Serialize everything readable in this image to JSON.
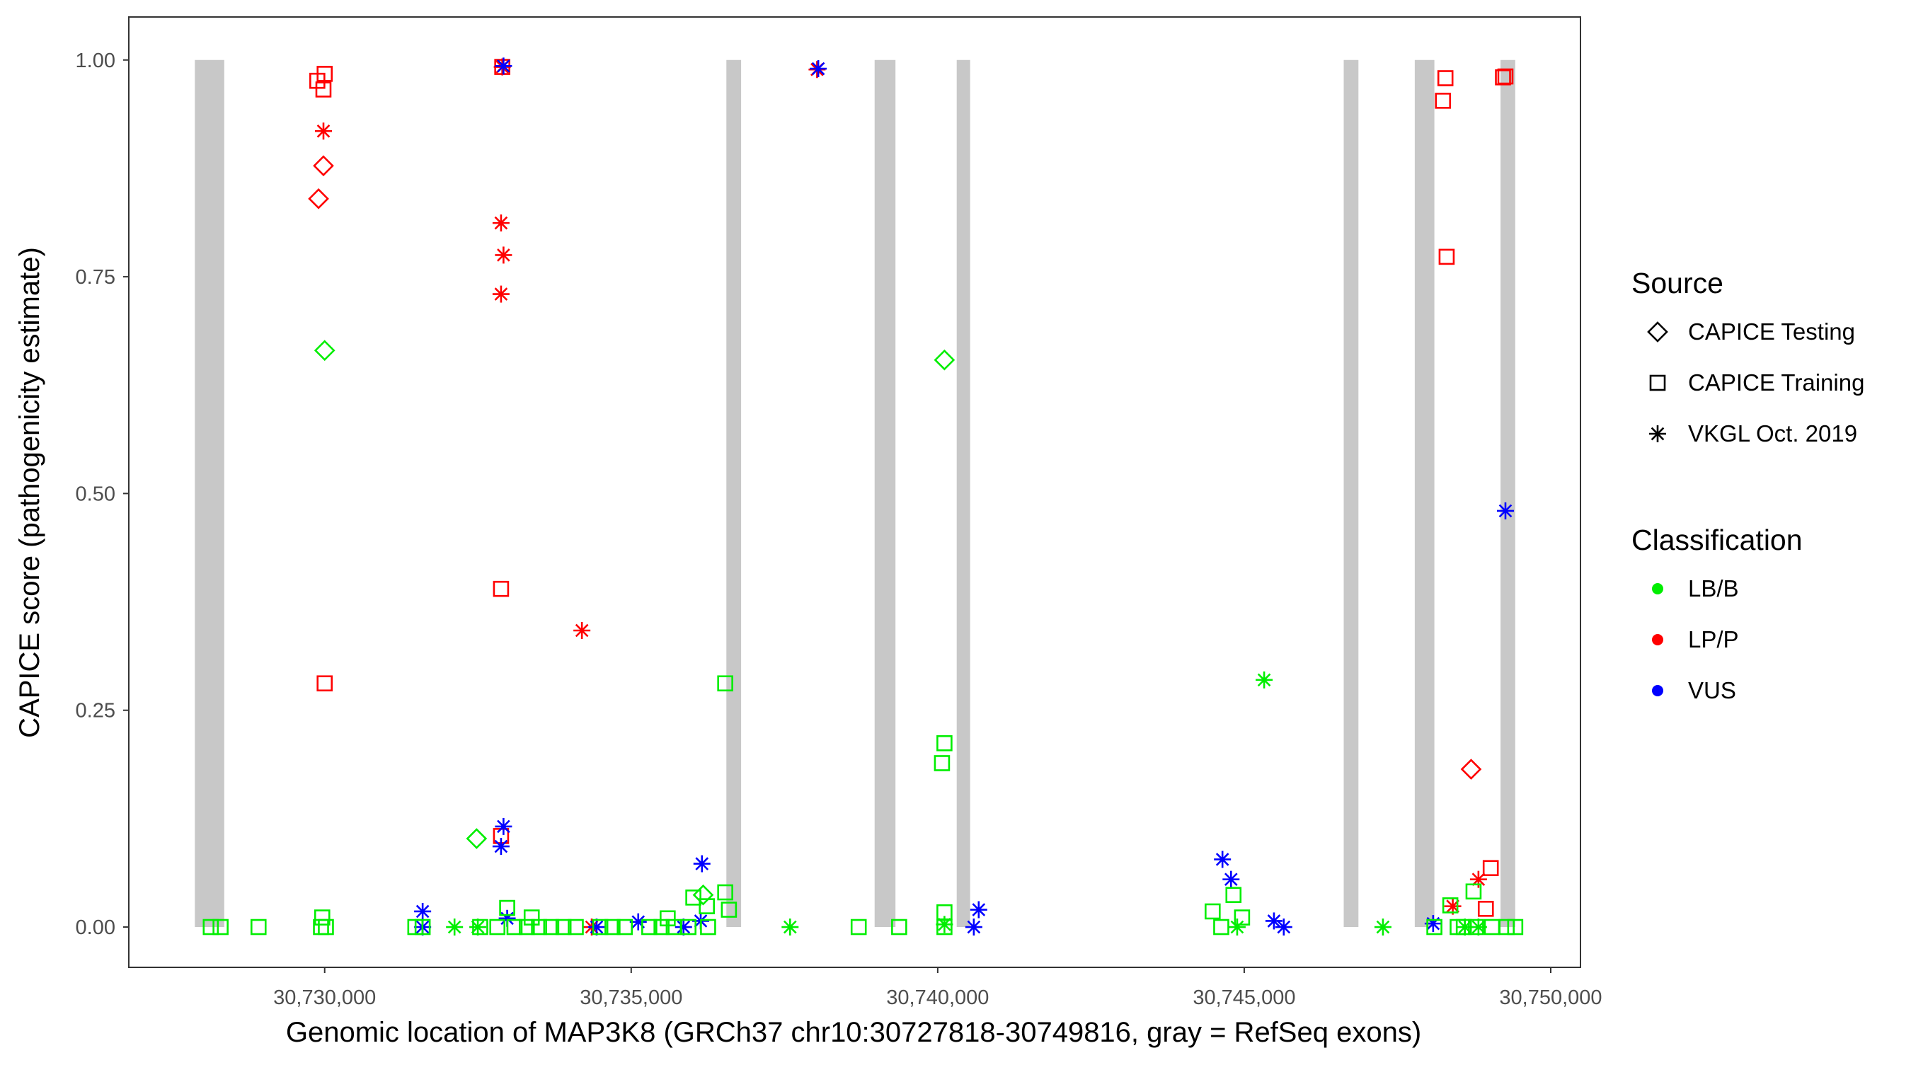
{
  "chart_data": {
    "type": "scatter",
    "title": "",
    "xlabel": "Genomic location of MAP3K8 (GRCh37 chr10:30727818-30749816, gray = RefSeq exons)",
    "ylabel": "CAPICE score (pathogenicity estimate)",
    "xlim": [
      30726805,
      30750485
    ],
    "ylim": [
      -0.0465,
      1.0496
    ],
    "x_ticks": [
      30730000,
      30735000,
      30740000,
      30745000,
      30750000
    ],
    "x_tick_labels": [
      "30,730,000",
      "30,735,000",
      "30,740,000",
      "30,745,000",
      "30,750,000"
    ],
    "y_ticks": [
      0,
      0.25,
      0.5,
      0.75,
      1
    ],
    "y_tick_labels": [
      "0.00",
      "0.25",
      "0.50",
      "0.75",
      "1.00"
    ],
    "grid": false,
    "exons": [
      [
        30727882,
        30728362
      ],
      [
        30736553,
        30736793
      ],
      [
        30738971,
        30739311
      ],
      [
        30740310,
        30740529
      ],
      [
        30746623,
        30746863
      ],
      [
        30747782,
        30748102
      ],
      [
        30749181,
        30749421
      ]
    ],
    "exon_color": "#c8c8c8",
    "legend": {
      "placement": "right",
      "source_title": "Source",
      "source_items": [
        {
          "label": "CAPICE Testing",
          "shape": "diamond"
        },
        {
          "label": "CAPICE Training",
          "shape": "square"
        },
        {
          "label": "VKGL Oct. 2019",
          "shape": "asterisk"
        }
      ],
      "class_title": "Classification",
      "class_items": [
        {
          "label": "LB/B",
          "color": "#00ee00"
        },
        {
          "label": "LP/P",
          "color": "#ff0000"
        },
        {
          "label": "VUS",
          "color": "#0000ff"
        }
      ]
    },
    "series": [
      {
        "source": "CAPICE Training",
        "class": "LP/P",
        "points": [
          [
            30729880,
            0.976
          ],
          [
            30730000,
            0.984
          ],
          [
            30729980,
            0.966
          ],
          [
            30732897,
            0.992
          ],
          [
            30732877,
            0.39
          ],
          [
            30730000,
            0.281
          ],
          [
            30732877,
            0.105
          ],
          [
            30748282,
            0.979
          ],
          [
            30748242,
            0.953
          ],
          [
            30748302,
            0.773
          ],
          [
            30749221,
            0.98
          ],
          [
            30749261,
            0.981
          ],
          [
            30749021,
            0.068
          ],
          [
            30748941,
            0.021
          ]
        ]
      },
      {
        "source": "CAPICE Testing",
        "class": "LP/P",
        "points": [
          [
            30729980,
            0.878
          ],
          [
            30729900,
            0.84
          ],
          [
            30748701,
            0.182
          ]
        ]
      },
      {
        "source": "VKGL Oct. 2019",
        "class": "LP/P",
        "points": [
          [
            30729980,
            0.918
          ],
          [
            30732877,
            0.812
          ],
          [
            30732917,
            0.775
          ],
          [
            30732877,
            0.73
          ],
          [
            30734196,
            0.342
          ],
          [
            30732897,
            0.992
          ],
          [
            30738032,
            0.989
          ],
          [
            30734356,
            0.0
          ],
          [
            30748402,
            0.024
          ],
          [
            30748821,
            0.055
          ]
        ]
      },
      {
        "source": "VKGL Oct. 2019",
        "class": "VUS",
        "points": [
          [
            30732917,
            0.993
          ],
          [
            30738052,
            0.99
          ],
          [
            30749261,
            0.48
          ],
          [
            30732917,
            0.116
          ],
          [
            30732877,
            0.093
          ],
          [
            30736154,
            0.073
          ],
          [
            30744645,
            0.078
          ],
          [
            30744785,
            0.055
          ],
          [
            30731598,
            0.018
          ],
          [
            30731598,
            0.0
          ],
          [
            30732977,
            0.01
          ],
          [
            30734436,
            0.0
          ],
          [
            30735115,
            0.006
          ],
          [
            30735854,
            0.0
          ],
          [
            30736134,
            0.007
          ],
          [
            30740589,
            0.0
          ],
          [
            30740669,
            0.02
          ],
          [
            30745485,
            0.007
          ],
          [
            30745645,
            0.0
          ],
          [
            30748082,
            0.004
          ]
        ]
      },
      {
        "source": "CAPICE Testing",
        "class": "LB/B",
        "points": [
          [
            30730000,
            0.665
          ],
          [
            30740110,
            0.654
          ],
          [
            30732478,
            0.102
          ],
          [
            30736174,
            0.037
          ]
        ]
      },
      {
        "source": "VKGL Oct. 2019",
        "class": "LB/B",
        "points": [
          [
            30745325,
            0.285
          ],
          [
            30732118,
            0.0
          ],
          [
            30732498,
            0.0
          ],
          [
            30737592,
            0.0
          ],
          [
            30744885,
            0.0
          ],
          [
            30747263,
            0.0
          ],
          [
            30740110,
            0.003
          ],
          [
            30748821,
            0.0
          ],
          [
            30748600,
            0.0
          ]
        ]
      },
      {
        "source": "CAPICE Training",
        "class": "LB/B",
        "points": [
          [
            30736534,
            0.281
          ],
          [
            30740110,
            0.212
          ],
          [
            30740070,
            0.189
          ],
          [
            30736014,
            0.034
          ],
          [
            30736534,
            0.04
          ],
          [
            30736594,
            0.02
          ],
          [
            30744485,
            0.018
          ],
          [
            30744825,
            0.037
          ],
          [
            30744965,
            0.011
          ],
          [
            30748741,
            0.041
          ],
          [
            30748362,
            0.025
          ],
          [
            30732977,
            0.022
          ],
          [
            30733377,
            0.011
          ],
          [
            30729960,
            0.011
          ],
          [
            30740110,
            0.017
          ],
          [
            30736234,
            0.024
          ],
          [
            30735595,
            0.01
          ],
          [
            30728142,
            0.0
          ],
          [
            30728302,
            0.0
          ],
          [
            30728921,
            0.0
          ],
          [
            30729940,
            0.0
          ],
          [
            30730020,
            0.0
          ],
          [
            30731479,
            0.0
          ],
          [
            30731598,
            0.0
          ],
          [
            30732537,
            0.0
          ],
          [
            30732817,
            0.0
          ],
          [
            30733097,
            0.0
          ],
          [
            30733297,
            0.0
          ],
          [
            30733497,
            0.0
          ],
          [
            30733696,
            0.0
          ],
          [
            30733896,
            0.0
          ],
          [
            30734096,
            0.0
          ],
          [
            30734496,
            0.0
          ],
          [
            30734695,
            0.0
          ],
          [
            30734895,
            0.0
          ],
          [
            30735295,
            0.0
          ],
          [
            30735495,
            0.0
          ],
          [
            30735694,
            0.0
          ],
          [
            30735934,
            0.0
          ],
          [
            30736254,
            0.0
          ],
          [
            30738711,
            0.0
          ],
          [
            30739371,
            0.0
          ],
          [
            30740110,
            0.0
          ],
          [
            30744625,
            0.0
          ],
          [
            30748102,
            0.0
          ],
          [
            30748482,
            0.0
          ],
          [
            30748582,
            0.0
          ],
          [
            30748781,
            0.0
          ],
          [
            30749041,
            0.0
          ],
          [
            30749281,
            0.0
          ],
          [
            30749421,
            0.0
          ]
        ]
      }
    ]
  }
}
